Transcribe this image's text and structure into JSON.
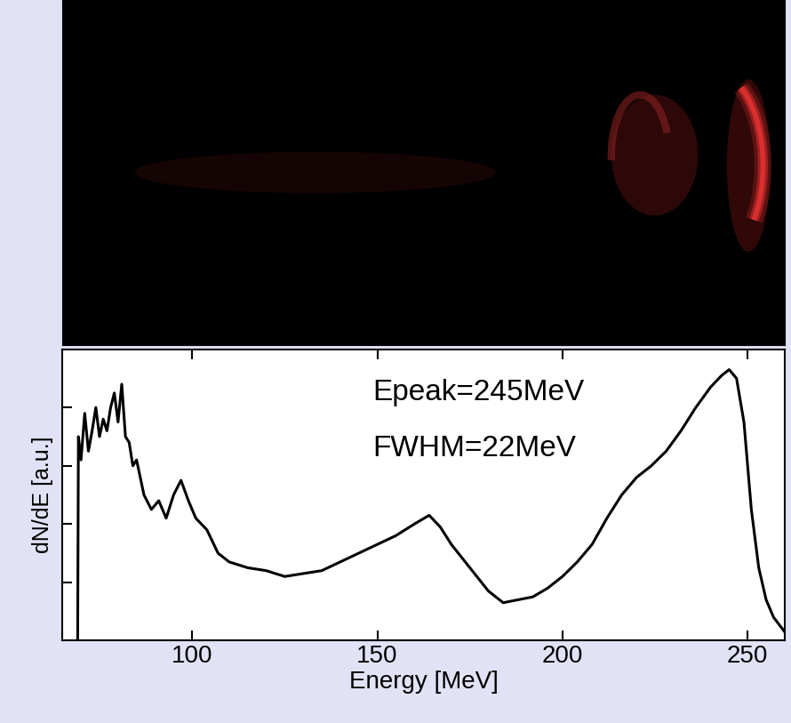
{
  "chart_data": {
    "type": "line",
    "y_label": "dN/dE [a.u.]",
    "x_label": "Energy [MeV]",
    "annotations": [
      "Epeak=245MeV",
      "FWHM=22MeV"
    ],
    "x": [
      69.1,
      69.3,
      70,
      71,
      72,
      73,
      74,
      75,
      76,
      77,
      78,
      79,
      80,
      81,
      82,
      83,
      84,
      85,
      87,
      89,
      91,
      93,
      95,
      97,
      99,
      101,
      104,
      107,
      110,
      115,
      120,
      125,
      130,
      135,
      140,
      145,
      150,
      155,
      160,
      164,
      167,
      170,
      175,
      180,
      184,
      188,
      192,
      196,
      200,
      204,
      208,
      212,
      216,
      220,
      224,
      228,
      232,
      236,
      240,
      243,
      245,
      247,
      249,
      251,
      253,
      255,
      257,
      260
    ],
    "values": [
      0,
      0.7,
      0.62,
      0.78,
      0.65,
      0.72,
      0.8,
      0.7,
      0.76,
      0.72,
      0.8,
      0.85,
      0.75,
      0.88,
      0.7,
      0.68,
      0.6,
      0.62,
      0.5,
      0.45,
      0.48,
      0.42,
      0.5,
      0.55,
      0.48,
      0.42,
      0.38,
      0.3,
      0.27,
      0.25,
      0.24,
      0.22,
      0.23,
      0.24,
      0.27,
      0.3,
      0.33,
      0.36,
      0.4,
      0.43,
      0.39,
      0.33,
      0.25,
      0.17,
      0.13,
      0.14,
      0.15,
      0.18,
      0.22,
      0.27,
      0.33,
      0.42,
      0.5,
      0.56,
      0.6,
      0.65,
      0.72,
      0.8,
      0.87,
      0.91,
      0.93,
      0.9,
      0.75,
      0.45,
      0.25,
      0.14,
      0.08,
      0.03
    ],
    "color": "#000000",
    "xlim": [
      65,
      260
    ],
    "ylim": [
      0,
      1
    ],
    "xticks": [
      100,
      150,
      200,
      250
    ],
    "yticks": [
      0.2,
      0.4,
      0.6,
      0.8
    ],
    "tick_labels": "x",
    "grid": false
  }
}
